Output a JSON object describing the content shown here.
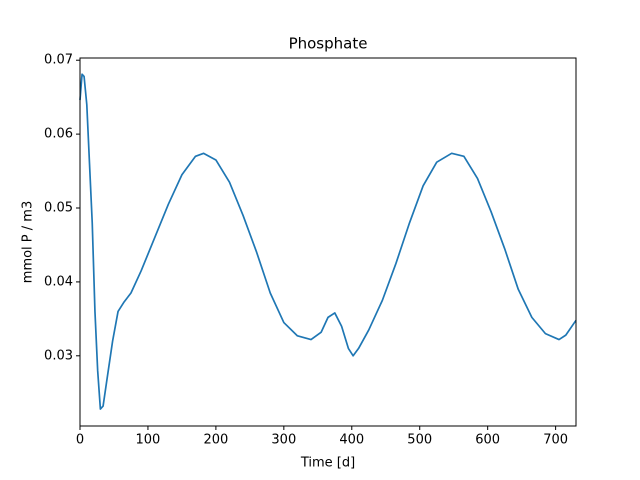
{
  "chart_data": {
    "type": "line",
    "title": "Phosphate",
    "x_label": "Time [d]",
    "y_label": "mmol P / m3",
    "x": [
      0,
      3,
      6,
      10,
      14,
      18,
      22,
      26,
      30,
      34,
      40,
      48,
      56,
      65,
      75,
      90,
      110,
      130,
      150,
      170,
      182,
      200,
      220,
      240,
      260,
      280,
      300,
      320,
      340,
      355,
      365,
      375,
      385,
      395,
      402,
      410,
      425,
      445,
      465,
      485,
      505,
      525,
      547,
      565,
      585,
      605,
      625,
      645,
      665,
      685,
      705,
      715,
      730
    ],
    "series": [
      {
        "name": "Phosphate",
        "color": "#1f77b4",
        "values": [
          0.0646,
          0.0681,
          0.0678,
          0.064,
          0.056,
          0.048,
          0.036,
          0.028,
          0.0228,
          0.0232,
          0.027,
          0.032,
          0.036,
          0.0373,
          0.0385,
          0.0415,
          0.046,
          0.0505,
          0.0545,
          0.057,
          0.0574,
          0.0565,
          0.0535,
          0.049,
          0.044,
          0.0385,
          0.0345,
          0.0327,
          0.0322,
          0.0332,
          0.0352,
          0.0358,
          0.034,
          0.031,
          0.03,
          0.031,
          0.0335,
          0.0375,
          0.0425,
          0.048,
          0.053,
          0.0562,
          0.0574,
          0.057,
          0.054,
          0.0495,
          0.0445,
          0.039,
          0.0352,
          0.033,
          0.0322,
          0.0328,
          0.0348
        ]
      }
    ],
    "xlim": [
      0,
      730
    ],
    "xticks": [
      0,
      100,
      200,
      300,
      400,
      500,
      600,
      700
    ],
    "ylim": [
      0.0205,
      0.0703
    ],
    "yticks": [
      0.03,
      0.04,
      0.05,
      0.06,
      0.07
    ]
  }
}
